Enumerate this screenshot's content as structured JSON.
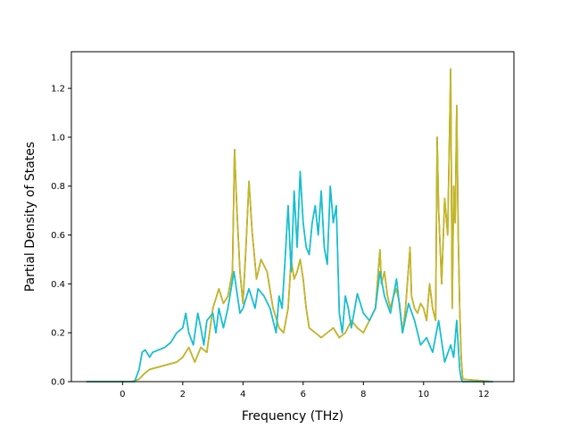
{
  "chart_data": {
    "type": "line",
    "title": "",
    "xlabel": "Frequency (THz)",
    "ylabel": "Partial Density of States",
    "xlim": [
      -1.7,
      13.0
    ],
    "ylim": [
      0.0,
      1.35
    ],
    "xticks": [
      0,
      2,
      4,
      6,
      8,
      10,
      12
    ],
    "yticks": [
      0.0,
      0.2,
      0.4,
      0.6,
      0.8,
      1.0,
      1.2
    ],
    "xtick_labels": [
      "0",
      "2",
      "4",
      "6",
      "8",
      "10",
      "12"
    ],
    "ytick_labels": [
      "0.0",
      "0.2",
      "0.4",
      "0.6",
      "0.8",
      "1.0",
      "1.2"
    ],
    "grid": false,
    "legend": "none",
    "series": [
      {
        "color": "#d62728",
        "x": [
          -1.2,
          0.3,
          0.55,
          0.7,
          0.9,
          1.2,
          1.5,
          1.8,
          2.0,
          2.2,
          2.4,
          2.6,
          2.8,
          3.0,
          3.2,
          3.35,
          3.5,
          3.65,
          3.72,
          3.8,
          3.9,
          4.0,
          4.1,
          4.2,
          4.3,
          4.45,
          4.6,
          4.8,
          5.0,
          5.2,
          5.35,
          5.5,
          5.6,
          5.7,
          5.8,
          5.9,
          6.0,
          6.1,
          6.2,
          6.4,
          6.6,
          6.8,
          7.0,
          7.2,
          7.4,
          7.6,
          7.8,
          8.0,
          8.2,
          8.4,
          8.55,
          8.6,
          8.7,
          8.8,
          8.9,
          9.0,
          9.1,
          9.2,
          9.3,
          9.4,
          9.55,
          9.6,
          9.7,
          9.8,
          9.9,
          10.0,
          10.1,
          10.2,
          10.3,
          10.4,
          10.45,
          10.5,
          10.6,
          10.7,
          10.8,
          10.9,
          10.95,
          11.0,
          11.05,
          11.1,
          11.15,
          11.2,
          11.25,
          11.3,
          12.3
        ],
        "y": [
          0,
          0,
          0.01,
          0.03,
          0.05,
          0.06,
          0.07,
          0.08,
          0.1,
          0.14,
          0.08,
          0.14,
          0.12,
          0.3,
          0.38,
          0.32,
          0.35,
          0.45,
          0.95,
          0.7,
          0.45,
          0.32,
          0.55,
          0.82,
          0.62,
          0.42,
          0.5,
          0.45,
          0.3,
          0.22,
          0.2,
          0.3,
          0.5,
          0.42,
          0.45,
          0.5,
          0.42,
          0.3,
          0.22,
          0.2,
          0.18,
          0.2,
          0.22,
          0.18,
          0.2,
          0.25,
          0.22,
          0.2,
          0.25,
          0.3,
          0.54,
          0.4,
          0.45,
          0.35,
          0.3,
          0.35,
          0.38,
          0.32,
          0.2,
          0.3,
          0.55,
          0.35,
          0.3,
          0.28,
          0.32,
          0.3,
          0.25,
          0.4,
          0.3,
          0.25,
          1.0,
          0.7,
          0.4,
          0.75,
          0.6,
          1.28,
          0.3,
          0.8,
          0.65,
          1.13,
          0.6,
          0.3,
          0.1,
          0.01,
          0
        ]
      },
      {
        "color": "#17becf",
        "x": [
          -1.2,
          0.4,
          0.55,
          0.65,
          0.75,
          0.9,
          1.0,
          1.2,
          1.4,
          1.6,
          1.8,
          2.0,
          2.1,
          2.2,
          2.35,
          2.5,
          2.6,
          2.7,
          2.8,
          3.0,
          3.1,
          3.2,
          3.35,
          3.5,
          3.7,
          3.9,
          4.0,
          4.2,
          4.4,
          4.5,
          4.7,
          4.9,
          5.1,
          5.2,
          5.3,
          5.4,
          5.5,
          5.6,
          5.7,
          5.8,
          5.9,
          6.0,
          6.1,
          6.2,
          6.3,
          6.4,
          6.5,
          6.6,
          6.7,
          6.8,
          6.9,
          7.0,
          7.1,
          7.2,
          7.3,
          7.4,
          7.5,
          7.6,
          7.8,
          8.0,
          8.2,
          8.4,
          8.55,
          8.7,
          8.9,
          9.1,
          9.3,
          9.5,
          9.7,
          9.9,
          10.1,
          10.3,
          10.5,
          10.7,
          10.9,
          11.0,
          11.1,
          11.2,
          11.25,
          11.3,
          12.3
        ],
        "y": [
          0,
          0,
          0.05,
          0.12,
          0.13,
          0.1,
          0.12,
          0.13,
          0.14,
          0.16,
          0.2,
          0.22,
          0.28,
          0.2,
          0.15,
          0.28,
          0.22,
          0.15,
          0.25,
          0.28,
          0.2,
          0.3,
          0.22,
          0.3,
          0.45,
          0.28,
          0.3,
          0.38,
          0.3,
          0.38,
          0.35,
          0.3,
          0.2,
          0.35,
          0.3,
          0.5,
          0.72,
          0.45,
          0.78,
          0.55,
          0.86,
          0.65,
          0.55,
          0.52,
          0.65,
          0.72,
          0.6,
          0.78,
          0.55,
          0.48,
          0.8,
          0.65,
          0.72,
          0.28,
          0.2,
          0.35,
          0.3,
          0.22,
          0.36,
          0.28,
          0.25,
          0.3,
          0.45,
          0.35,
          0.28,
          0.42,
          0.2,
          0.32,
          0.25,
          0.15,
          0.18,
          0.12,
          0.25,
          0.08,
          0.15,
          0.1,
          0.25,
          0.05,
          0.01,
          0,
          0
        ]
      },
      {
        "color": "#bcbd22",
        "x": [
          -1.2,
          0.3,
          0.55,
          0.7,
          0.9,
          1.2,
          1.5,
          1.8,
          2.0,
          2.2,
          2.4,
          2.6,
          2.8,
          3.0,
          3.2,
          3.35,
          3.5,
          3.65,
          3.72,
          3.8,
          3.9,
          4.0,
          4.1,
          4.2,
          4.3,
          4.45,
          4.6,
          4.8,
          5.0,
          5.2,
          5.35,
          5.5,
          5.6,
          5.7,
          5.8,
          5.9,
          6.0,
          6.1,
          6.2,
          6.4,
          6.6,
          6.8,
          7.0,
          7.2,
          7.4,
          7.6,
          7.8,
          8.0,
          8.2,
          8.4,
          8.55,
          8.6,
          8.7,
          8.8,
          8.9,
          9.0,
          9.1,
          9.2,
          9.3,
          9.4,
          9.55,
          9.6,
          9.7,
          9.8,
          9.9,
          10.0,
          10.1,
          10.2,
          10.3,
          10.4,
          10.45,
          10.5,
          10.6,
          10.7,
          10.8,
          10.9,
          10.95,
          11.0,
          11.05,
          11.1,
          11.15,
          11.2,
          11.25,
          11.3,
          12.3
        ],
        "y": [
          0,
          0,
          0.01,
          0.03,
          0.05,
          0.06,
          0.07,
          0.08,
          0.1,
          0.14,
          0.08,
          0.14,
          0.12,
          0.3,
          0.38,
          0.32,
          0.35,
          0.45,
          0.95,
          0.7,
          0.45,
          0.32,
          0.55,
          0.82,
          0.62,
          0.42,
          0.5,
          0.45,
          0.3,
          0.22,
          0.2,
          0.3,
          0.5,
          0.42,
          0.45,
          0.5,
          0.42,
          0.3,
          0.22,
          0.2,
          0.18,
          0.2,
          0.22,
          0.18,
          0.2,
          0.25,
          0.22,
          0.2,
          0.25,
          0.3,
          0.54,
          0.4,
          0.45,
          0.35,
          0.3,
          0.35,
          0.38,
          0.32,
          0.2,
          0.3,
          0.55,
          0.35,
          0.3,
          0.28,
          0.32,
          0.3,
          0.25,
          0.4,
          0.3,
          0.25,
          1.0,
          0.7,
          0.4,
          0.75,
          0.6,
          1.28,
          0.3,
          0.8,
          0.65,
          1.13,
          0.6,
          0.3,
          0.1,
          0.01,
          0
        ]
      },
      {
        "color": "#17becf",
        "x": [
          -1.2,
          0.4,
          0.55,
          0.65,
          0.75,
          0.9,
          1.0,
          1.2,
          1.4,
          1.6,
          1.8,
          2.0,
          2.1,
          2.2,
          2.35,
          2.5,
          2.6,
          2.7,
          2.8,
          3.0,
          3.1,
          3.2,
          3.35,
          3.5,
          3.7,
          3.9,
          4.0,
          4.2,
          4.4,
          4.5,
          4.7,
          4.9,
          5.1,
          5.2,
          5.3,
          5.4,
          5.5,
          5.6,
          5.7,
          5.8,
          5.9,
          6.0,
          6.1,
          6.2,
          6.3,
          6.4,
          6.5,
          6.6,
          6.7,
          6.8,
          6.9,
          7.0,
          7.1,
          7.2,
          7.3,
          7.4,
          7.5,
          7.6,
          7.8,
          8.0,
          8.2,
          8.4,
          8.55,
          8.7,
          8.9,
          9.1,
          9.3,
          9.5,
          9.7,
          9.9,
          10.1,
          10.3,
          10.5,
          10.7,
          10.9,
          11.0,
          11.1,
          11.2,
          11.25,
          11.3,
          12.3
        ],
        "y": [
          0,
          0,
          0.05,
          0.12,
          0.13,
          0.1,
          0.12,
          0.13,
          0.14,
          0.16,
          0.2,
          0.22,
          0.28,
          0.2,
          0.15,
          0.28,
          0.22,
          0.15,
          0.25,
          0.28,
          0.2,
          0.3,
          0.22,
          0.3,
          0.45,
          0.28,
          0.3,
          0.38,
          0.3,
          0.38,
          0.35,
          0.3,
          0.2,
          0.35,
          0.3,
          0.5,
          0.72,
          0.45,
          0.78,
          0.55,
          0.86,
          0.65,
          0.55,
          0.52,
          0.65,
          0.72,
          0.6,
          0.78,
          0.55,
          0.48,
          0.8,
          0.65,
          0.72,
          0.28,
          0.2,
          0.35,
          0.3,
          0.22,
          0.36,
          0.28,
          0.25,
          0.3,
          0.45,
          0.35,
          0.28,
          0.42,
          0.2,
          0.32,
          0.25,
          0.15,
          0.18,
          0.12,
          0.25,
          0.08,
          0.15,
          0.1,
          0.25,
          0.05,
          0.01,
          0,
          0
        ]
      }
    ]
  }
}
